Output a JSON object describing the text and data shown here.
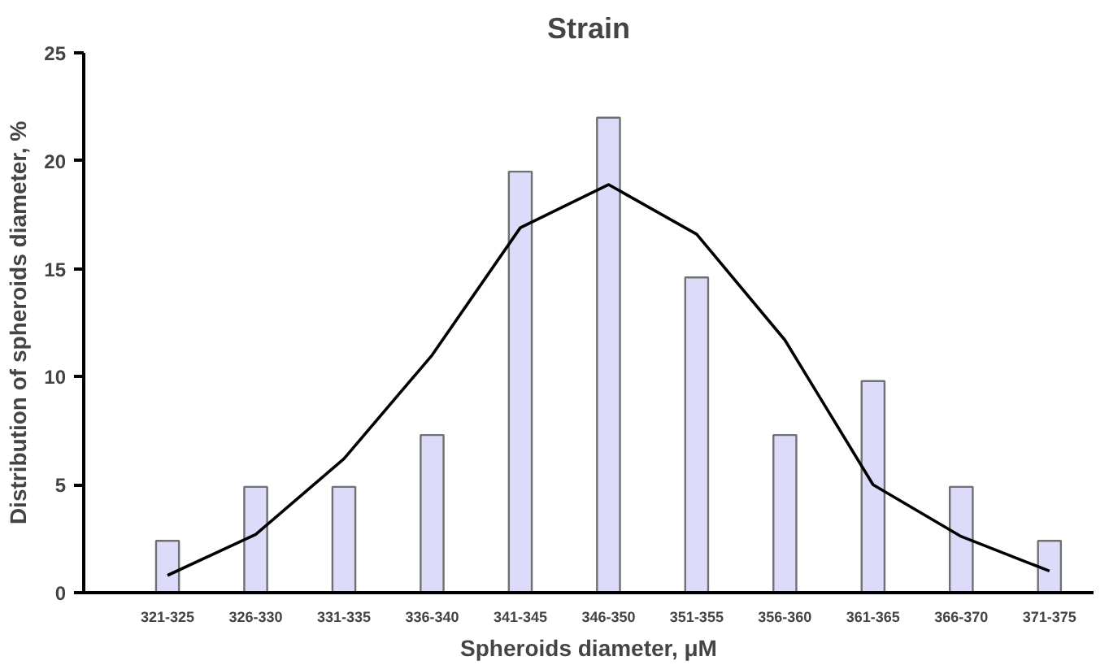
{
  "chart_data": {
    "type": "bar",
    "title": "Strain",
    "xlabel": "Spheroids diameter, μM",
    "ylabel": "Distribution of spheroids diameter, %",
    "categories": [
      "321-325",
      "326-330",
      "331-335",
      "336-340",
      "341-345",
      "346-350",
      "351-355",
      "356-360",
      "361-365",
      "366-370",
      "371-375"
    ],
    "ylim": [
      0,
      25
    ],
    "yticks": [
      0,
      5,
      10,
      15,
      20,
      25
    ],
    "grid": false,
    "series": [
      {
        "color": "#dcdcfa",
        "values": [
          2.4,
          4.9,
          4.9,
          7.3,
          19.5,
          22.0,
          14.6,
          7.3,
          9.8,
          4.9,
          2.4
        ]
      },
      {
        "type": "line",
        "color": "#000000",
        "values": [
          0.8,
          2.7,
          6.2,
          11.0,
          16.9,
          18.9,
          16.6,
          11.7,
          5.0,
          2.6,
          1.0
        ]
      }
    ]
  }
}
